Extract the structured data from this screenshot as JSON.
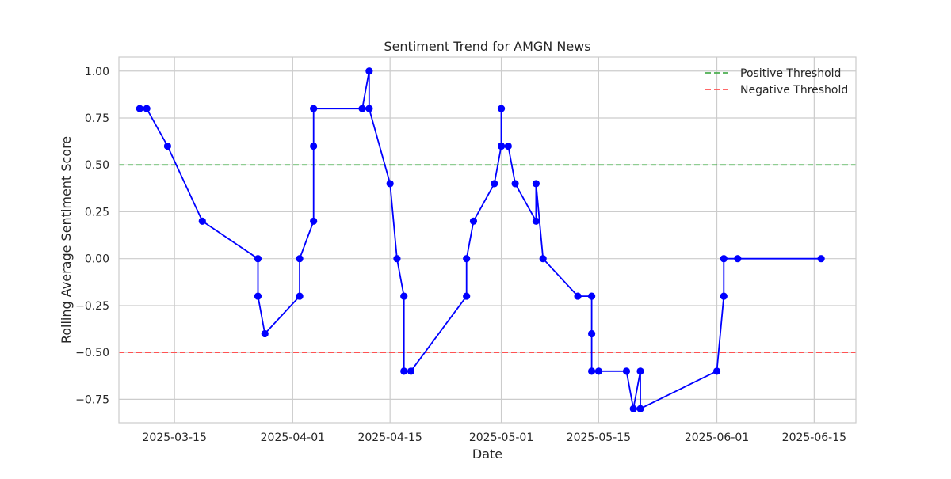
{
  "chart_data": {
    "type": "line",
    "title": "Sentiment Trend for AMGN News",
    "xlabel": "Date",
    "ylabel": "Rolling Average Sentiment Score",
    "x_axis_type": "date",
    "xlim": [
      "2025-03-07",
      "2025-06-21"
    ],
    "ylim": [
      -0.875,
      1.075
    ],
    "x_ticks": [
      "2025-03-15",
      "2025-04-01",
      "2025-04-15",
      "2025-05-01",
      "2025-05-15",
      "2025-06-01",
      "2025-06-15"
    ],
    "y_ticks": [
      1.0,
      0.75,
      0.5,
      0.25,
      0.0,
      -0.25,
      -0.5,
      -0.75
    ],
    "y_tick_labels": [
      "1.00",
      "0.75",
      "0.50",
      "0.25",
      "0.00",
      "−0.25",
      "−0.50",
      "−0.75"
    ],
    "grid": true,
    "legend_position": "top-right",
    "series": [
      {
        "color": "#0000ff",
        "marker": "circle",
        "points": [
          {
            "x": "2025-03-10",
            "y": 0.8
          },
          {
            "x": "2025-03-11",
            "y": 0.8
          },
          {
            "x": "2025-03-14",
            "y": 0.6
          },
          {
            "x": "2025-03-19",
            "y": 0.2
          },
          {
            "x": "2025-03-27",
            "y": 0.0
          },
          {
            "x": "2025-03-27",
            "y": -0.2
          },
          {
            "x": "2025-03-28",
            "y": -0.4
          },
          {
            "x": "2025-04-02",
            "y": -0.2
          },
          {
            "x": "2025-04-02",
            "y": 0.0
          },
          {
            "x": "2025-04-04",
            "y": 0.2
          },
          {
            "x": "2025-04-04",
            "y": 0.6
          },
          {
            "x": "2025-04-04",
            "y": 0.8
          },
          {
            "x": "2025-04-11",
            "y": 0.8
          },
          {
            "x": "2025-04-12",
            "y": 1.0
          },
          {
            "x": "2025-04-12",
            "y": 0.8
          },
          {
            "x": "2025-04-15",
            "y": 0.4
          },
          {
            "x": "2025-04-16",
            "y": 0.0
          },
          {
            "x": "2025-04-17",
            "y": -0.2
          },
          {
            "x": "2025-04-17",
            "y": -0.6
          },
          {
            "x": "2025-04-18",
            "y": -0.6
          },
          {
            "x": "2025-04-26",
            "y": -0.2
          },
          {
            "x": "2025-04-26",
            "y": 0.0
          },
          {
            "x": "2025-04-27",
            "y": 0.2
          },
          {
            "x": "2025-04-30",
            "y": 0.4
          },
          {
            "x": "2025-05-01",
            "y": 0.6
          },
          {
            "x": "2025-05-01",
            "y": 0.8
          },
          {
            "x": "2025-05-01",
            "y": 0.6
          },
          {
            "x": "2025-05-02",
            "y": 0.6
          },
          {
            "x": "2025-05-03",
            "y": 0.4
          },
          {
            "x": "2025-05-06",
            "y": 0.2
          },
          {
            "x": "2025-05-06",
            "y": 0.4
          },
          {
            "x": "2025-05-07",
            "y": 0.0
          },
          {
            "x": "2025-05-12",
            "y": -0.2
          },
          {
            "x": "2025-05-14",
            "y": -0.2
          },
          {
            "x": "2025-05-14",
            "y": -0.4
          },
          {
            "x": "2025-05-14",
            "y": -0.6
          },
          {
            "x": "2025-05-15",
            "y": -0.6
          },
          {
            "x": "2025-05-19",
            "y": -0.6
          },
          {
            "x": "2025-05-20",
            "y": -0.8
          },
          {
            "x": "2025-05-21",
            "y": -0.6
          },
          {
            "x": "2025-05-21",
            "y": -0.8
          },
          {
            "x": "2025-06-01",
            "y": -0.6
          },
          {
            "x": "2025-06-02",
            "y": -0.2
          },
          {
            "x": "2025-06-02",
            "y": 0.0
          },
          {
            "x": "2025-06-04",
            "y": 0.0
          },
          {
            "x": "2025-06-16",
            "y": 0.0
          }
        ]
      }
    ],
    "reference_lines": [
      {
        "name": "Positive Threshold",
        "y": 0.5,
        "color": "#4caf50",
        "style": "dashed"
      },
      {
        "name": "Negative Threshold",
        "y": -0.5,
        "color": "#ff5252",
        "style": "dashed"
      }
    ]
  }
}
